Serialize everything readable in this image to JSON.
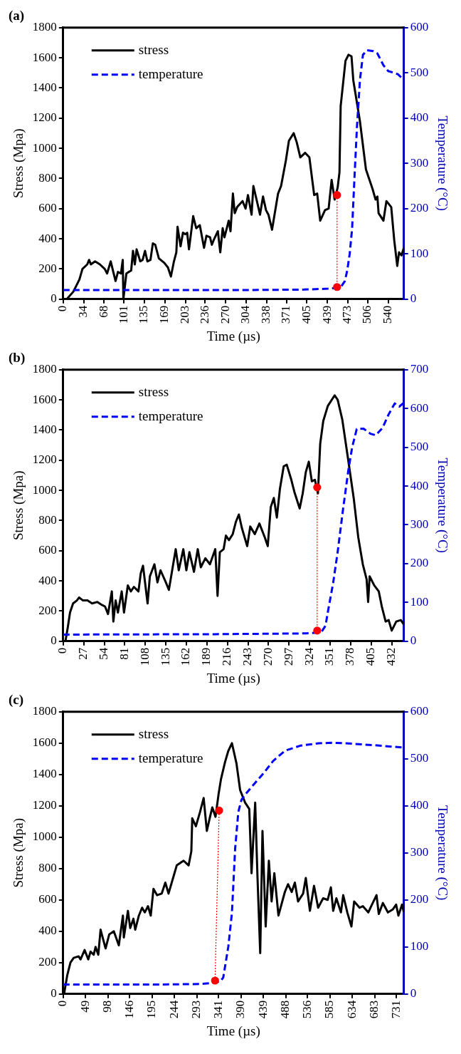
{
  "chart_data": [
    {
      "type": "line",
      "title": "(a)",
      "xlabel": "Time (µs)",
      "ylabel": "Stress (Mpa)",
      "y2label": "Temperature (°C)",
      "legend": "top left",
      "grid": false,
      "xlim": [
        0,
        566
      ],
      "xticks": [
        0,
        34,
        68,
        101,
        135,
        169,
        203,
        236,
        270,
        304,
        338,
        371,
        405,
        439,
        473,
        506,
        540
      ],
      "ylim": [
        0,
        1800
      ],
      "yticks": [
        0,
        200,
        400,
        600,
        800,
        1000,
        1200,
        1400,
        1600,
        1800
      ],
      "y2lim": [
        0,
        600
      ],
      "y2ticks": [
        0,
        100,
        200,
        300,
        400,
        500,
        600
      ],
      "series": [
        {
          "name": "stress",
          "color": "#000000",
          "line_style": "solid",
          "marker": "none",
          "x": [
            6,
            17,
            27,
            32,
            40,
            43,
            46,
            53,
            61,
            69,
            73,
            79,
            87,
            91,
            96,
            99,
            100,
            105,
            113,
            116,
            119,
            122,
            128,
            132,
            136,
            140,
            145,
            149,
            153,
            159,
            168,
            174,
            179,
            184,
            188,
            190,
            195,
            199,
            203,
            206,
            209,
            216,
            221,
            227,
            234,
            238,
            244,
            247,
            251,
            257,
            261,
            265,
            268,
            275,
            278,
            282,
            285,
            289,
            298,
            303,
            307,
            313,
            316,
            323,
            327,
            332,
            337,
            341,
            347,
            357,
            362,
            370,
            375,
            383,
            388,
            394,
            402,
            409,
            417,
            422,
            427,
            435,
            441,
            446,
            451,
            456,
            459,
            461,
            469,
            474,
            479,
            482,
            493,
            503,
            514,
            519,
            522,
            524,
            532,
            537,
            545,
            550,
            555,
            558,
            562,
            566
          ],
          "values": [
            0,
            50,
            130,
            200,
            230,
            260,
            230,
            250,
            230,
            200,
            170,
            250,
            120,
            180,
            170,
            260,
            0,
            170,
            190,
            320,
            230,
            330,
            250,
            260,
            320,
            250,
            260,
            370,
            360,
            270,
            240,
            210,
            150,
            250,
            310,
            480,
            350,
            440,
            430,
            440,
            330,
            550,
            470,
            490,
            340,
            420,
            410,
            360,
            400,
            450,
            310,
            470,
            410,
            520,
            450,
            700,
            570,
            610,
            650,
            600,
            690,
            560,
            750,
            630,
            560,
            680,
            590,
            560,
            460,
            700,
            750,
            920,
            1050,
            1100,
            1040,
            940,
            970,
            940,
            690,
            700,
            520,
            590,
            600,
            790,
            660,
            740,
            840,
            1280,
            1580,
            1620,
            1610,
            1450,
            1180,
            860,
            730,
            660,
            680,
            570,
            520,
            650,
            610,
            390,
            220,
            310,
            290,
            340
          ]
        },
        {
          "name": "temperature",
          "color": "#0000ff",
          "axis": "y2",
          "line_style": "dashed",
          "marker": "none",
          "x": [
            0,
            300,
            400,
            440,
            456,
            462,
            468,
            472,
            476,
            480,
            484,
            488,
            493,
            498,
            505,
            515,
            522,
            532,
            540,
            550,
            556,
            564
          ],
          "values": [
            20,
            20,
            21,
            23,
            25,
            28,
            40,
            64,
            100,
            156,
            270,
            379,
            484,
            540,
            550,
            548,
            543,
            517,
            504,
            500,
            497,
            487
          ]
        },
        {
          "type": "line",
          "color": "#ff0000",
          "line_style": "dotted",
          "marker": "circle",
          "x": [
            455,
            455
          ],
          "values": [
            690,
            80
          ]
        }
      ]
    },
    {
      "type": "line",
      "title": "(b)",
      "xlabel": "Time (µs)",
      "ylabel": "Stress (Mpa)",
      "y2label": "Temperature (°C)",
      "legend": "top left",
      "grid": false,
      "xlim": [
        0,
        448
      ],
      "xticks": [
        0,
        27,
        54,
        81,
        108,
        135,
        162,
        189,
        216,
        243,
        270,
        297,
        324,
        351,
        378,
        405,
        432
      ],
      "ylim": [
        0,
        1800
      ],
      "yticks": [
        0,
        200,
        400,
        600,
        800,
        1000,
        1200,
        1400,
        1600,
        1800
      ],
      "y2lim": [
        0,
        700
      ],
      "y2ticks": [
        0,
        100,
        200,
        300,
        400,
        500,
        600,
        700
      ],
      "series": [
        {
          "name": "stress",
          "color": "#000000",
          "line_style": "solid",
          "marker": "none",
          "x": [
            3,
            6,
            9,
            13,
            18,
            21,
            26,
            32,
            38,
            45,
            51,
            55,
            59,
            64,
            66,
            69,
            72,
            77,
            80,
            85,
            89,
            93,
            99,
            102,
            105,
            111,
            114,
            120,
            124,
            128,
            135,
            139,
            144,
            148,
            152,
            158,
            162,
            166,
            172,
            177,
            181,
            187,
            193,
            200,
            203,
            206,
            211,
            214,
            218,
            223,
            227,
            231,
            235,
            242,
            246,
            252,
            258,
            265,
            269,
            273,
            277,
            281,
            285,
            290,
            294,
            300,
            304,
            311,
            315,
            319,
            323,
            327,
            331,
            335,
            338,
            342,
            348,
            357,
            361,
            367,
            374,
            382,
            388,
            394,
            399,
            401,
            403,
            409,
            415,
            419,
            424,
            428,
            432,
            438,
            444,
            448
          ],
          "values": [
            0,
            90,
            190,
            250,
            270,
            290,
            270,
            270,
            250,
            260,
            240,
            230,
            180,
            330,
            130,
            270,
            190,
            330,
            190,
            370,
            330,
            360,
            330,
            450,
            500,
            250,
            430,
            510,
            390,
            470,
            390,
            340,
            490,
            610,
            470,
            610,
            470,
            590,
            460,
            610,
            490,
            550,
            510,
            610,
            300,
            590,
            610,
            700,
            670,
            710,
            790,
            840,
            750,
            630,
            760,
            710,
            780,
            690,
            630,
            890,
            950,
            820,
            1010,
            1160,
            1170,
            1070,
            990,
            880,
            980,
            1120,
            1190,
            1060,
            1070,
            980,
            1310,
            1460,
            1560,
            1630,
            1600,
            1470,
            1230,
            950,
            690,
            510,
            410,
            260,
            430,
            370,
            330,
            230,
            130,
            140,
            70,
            130,
            140,
            110
          ]
        },
        {
          "name": "temperature",
          "color": "#0000ff",
          "axis": "y2",
          "line_style": "dashed",
          "marker": "none",
          "x": [
            0,
            200,
            320,
            334,
            340,
            345,
            348,
            355,
            361,
            368,
            375,
            380,
            386,
            395,
            404,
            411,
            420,
            428,
            436,
            442,
            448
          ],
          "values": [
            17,
            18,
            20,
            22,
            25,
            40,
            75,
            150,
            231,
            340,
            441,
            500,
            547,
            548,
            535,
            531,
            550,
            585,
            613,
            605,
            615
          ]
        },
        {
          "type": "line",
          "color": "#ff0000",
          "line_style": "dotted",
          "marker": "circle",
          "x": [
            334,
            334
          ],
          "values": [
            1020,
            70
          ]
        }
      ]
    },
    {
      "type": "line",
      "title": "(c)",
      "xlabel": "Time (µs)",
      "ylabel": "Stress (Mpa)",
      "y2label": "Temperature (°C)",
      "legend": "top left",
      "grid": false,
      "xlim": [
        0,
        747
      ],
      "xticks": [
        0,
        49,
        98,
        146,
        195,
        244,
        293,
        341,
        390,
        439,
        488,
        536,
        585,
        634,
        683,
        731
      ],
      "ylim": [
        0,
        1800
      ],
      "yticks": [
        0,
        200,
        400,
        600,
        800,
        1000,
        1200,
        1400,
        1600,
        1800
      ],
      "y2lim": [
        0,
        600
      ],
      "y2ticks": [
        0,
        100,
        200,
        300,
        400,
        500,
        600
      ],
      "series": [
        {
          "name": "stress",
          "color": "#000000",
          "line_style": "solid",
          "marker": "none",
          "x": [
            2,
            9,
            16,
            23,
            34,
            38,
            47,
            55,
            60,
            67,
            71,
            77,
            82,
            93,
            101,
            111,
            122,
            131,
            133,
            142,
            147,
            154,
            158,
            166,
            173,
            179,
            186,
            192,
            198,
            206,
            216,
            224,
            231,
            242,
            249,
            264,
            275,
            281,
            283,
            291,
            300,
            308,
            315,
            322,
            327,
            334,
            341,
            346,
            355,
            362,
            370,
            380,
            388,
            399,
            408,
            413,
            421,
            426,
            432,
            437,
            444,
            451,
            457,
            463,
            472,
            486,
            493,
            501,
            508,
            515,
            526,
            532,
            541,
            550,
            559,
            570,
            580,
            587,
            592,
            599,
            609,
            614,
            623,
            632,
            638,
            650,
            657,
            669,
            677,
            687,
            692,
            701,
            712,
            723,
            730,
            735,
            743,
            747
          ],
          "values": [
            0,
            120,
            200,
            230,
            240,
            220,
            280,
            220,
            270,
            250,
            300,
            250,
            410,
            290,
            380,
            400,
            310,
            500,
            360,
            530,
            420,
            480,
            410,
            500,
            550,
            520,
            560,
            500,
            670,
            630,
            640,
            710,
            640,
            750,
            820,
            850,
            820,
            910,
            1120,
            1070,
            1160,
            1250,
            1040,
            1130,
            1190,
            1130,
            1280,
            1370,
            1480,
            1550,
            1600,
            1470,
            1300,
            1220,
            1180,
            770,
            1220,
            750,
            260,
            1040,
            430,
            850,
            590,
            770,
            500,
            650,
            700,
            650,
            710,
            590,
            640,
            740,
            530,
            690,
            550,
            610,
            600,
            680,
            530,
            610,
            520,
            630,
            520,
            430,
            590,
            550,
            560,
            520,
            570,
            630,
            510,
            580,
            520,
            540,
            570,
            500,
            570,
            520
          ]
        },
        {
          "name": "temperature",
          "color": "#0000ff",
          "axis": "y2",
          "line_style": "dashed",
          "marker": "none",
          "x": [
            0,
            200,
            300,
            333,
            345,
            351,
            362,
            370,
            377,
            384,
            391,
            400,
            421,
            440,
            460,
            486,
            520,
            560,
            588,
            620,
            680,
            747
          ],
          "values": [
            20,
            20,
            21,
            24,
            27,
            35,
            100,
            172,
            308,
            387,
            413,
            425,
            449,
            470,
            495,
            517,
            528,
            533,
            534,
            533,
            529,
            524
          ]
        },
        {
          "type": "line",
          "color": "#ff0000",
          "line_style": "dotted",
          "marker": "circle",
          "x": [
            333,
            342
          ],
          "values": [
            85,
            1170
          ]
        }
      ]
    }
  ]
}
